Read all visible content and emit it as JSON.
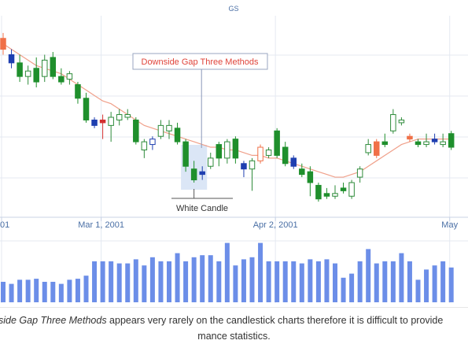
{
  "colors": {
    "bull": "#2e8b3a",
    "bear_green": "#1b8b2b",
    "hollow_green": "#2e8b3a",
    "blue": "#1f3fb0",
    "orange": "#f07048",
    "red_candle": "#d33030",
    "ma_line": "#f0a08a",
    "volume": "#6c8ee8",
    "grid": "#e4e9f2",
    "annotation_red": "#e0443a",
    "annotation_dark": "#333333",
    "highlight": "#dbe6f6"
  },
  "chart_data": {
    "type": "candlestick",
    "title": "GS",
    "x_ticks": [
      {
        "label": "01",
        "index": 0
      },
      {
        "label": "Mar 1, 2001",
        "index": 12
      },
      {
        "label": "Apr 2, 2001",
        "index": 33
      },
      {
        "label": "May",
        "index": 54
      }
    ],
    "price_axis_hidden": true,
    "grid": true,
    "candles": [
      {
        "o": 110,
        "h": 112,
        "l": 104,
        "c": 106,
        "color": "orange"
      },
      {
        "o": 104,
        "h": 106,
        "l": 99,
        "c": 101,
        "color": "blue"
      },
      {
        "o": 101,
        "h": 104,
        "l": 94,
        "c": 96,
        "color": "green"
      },
      {
        "o": 96,
        "h": 100,
        "l": 93,
        "c": 98,
        "color": "green_hollow"
      },
      {
        "o": 99,
        "h": 103,
        "l": 92,
        "c": 94,
        "color": "green"
      },
      {
        "o": 96,
        "h": 104,
        "l": 94,
        "c": 102,
        "color": "green_hollow"
      },
      {
        "o": 103,
        "h": 105,
        "l": 95,
        "c": 96,
        "color": "green"
      },
      {
        "o": 96,
        "h": 99,
        "l": 93,
        "c": 94,
        "color": "green"
      },
      {
        "o": 95,
        "h": 98,
        "l": 93,
        "c": 97,
        "color": "green_hollow"
      },
      {
        "o": 93,
        "h": 94,
        "l": 86,
        "c": 88,
        "color": "green"
      },
      {
        "o": 88,
        "h": 90,
        "l": 79,
        "c": 80,
        "color": "green"
      },
      {
        "o": 80,
        "h": 81,
        "l": 77,
        "c": 78,
        "color": "blue"
      },
      {
        "o": 79,
        "h": 82,
        "l": 73,
        "c": 80,
        "color": "red"
      },
      {
        "o": 78,
        "h": 83,
        "l": 72,
        "c": 81,
        "color": "green_hollow"
      },
      {
        "o": 80,
        "h": 84,
        "l": 78,
        "c": 82,
        "color": "green_hollow"
      },
      {
        "o": 81,
        "h": 84,
        "l": 80,
        "c": 82,
        "color": "green_hollow"
      },
      {
        "o": 80,
        "h": 81,
        "l": 71,
        "c": 72,
        "color": "green"
      },
      {
        "o": 69,
        "h": 73,
        "l": 66,
        "c": 72,
        "color": "green_hollow"
      },
      {
        "o": 71,
        "h": 74,
        "l": 69,
        "c": 73,
        "color": "blue_hollow"
      },
      {
        "o": 74,
        "h": 80,
        "l": 73,
        "c": 78,
        "color": "green_hollow"
      },
      {
        "o": 78,
        "h": 80,
        "l": 73,
        "c": 76,
        "color": "green_hollow"
      },
      {
        "o": 77,
        "h": 79,
        "l": 71,
        "c": 72,
        "color": "green"
      },
      {
        "o": 72,
        "h": 73,
        "l": 61,
        "c": 63,
        "color": "green"
      },
      {
        "o": 62,
        "h": 65,
        "l": 57,
        "c": 58,
        "color": "green"
      },
      {
        "o": 61,
        "h": 63,
        "l": 58,
        "c": 60,
        "color": "blue"
      },
      {
        "o": 63,
        "h": 68,
        "l": 62,
        "c": 66,
        "color": "green_hollow"
      },
      {
        "o": 71,
        "h": 72,
        "l": 63,
        "c": 66,
        "color": "green"
      },
      {
        "o": 66,
        "h": 73,
        "l": 64,
        "c": 72,
        "color": "green_hollow"
      },
      {
        "o": 73,
        "h": 74,
        "l": 64,
        "c": 66,
        "color": "green"
      },
      {
        "o": 64,
        "h": 65,
        "l": 59,
        "c": 62,
        "color": "blue"
      },
      {
        "o": 65,
        "h": 66,
        "l": 54,
        "c": 62,
        "color": "green_hollow"
      },
      {
        "o": 65,
        "h": 71,
        "l": 64,
        "c": 70,
        "color": "orange_hollow"
      },
      {
        "o": 69,
        "h": 70,
        "l": 66,
        "c": 67,
        "color": "green_hollow"
      },
      {
        "o": 76,
        "h": 77,
        "l": 66,
        "c": 67,
        "color": "green"
      },
      {
        "o": 70,
        "h": 72,
        "l": 63,
        "c": 64,
        "color": "green"
      },
      {
        "o": 66,
        "h": 67,
        "l": 62,
        "c": 63,
        "color": "blue"
      },
      {
        "o": 62,
        "h": 64,
        "l": 59,
        "c": 60,
        "color": "green"
      },
      {
        "o": 61,
        "h": 63,
        "l": 52,
        "c": 57,
        "color": "green"
      },
      {
        "o": 56,
        "h": 57,
        "l": 50,
        "c": 51,
        "color": "green"
      },
      {
        "o": 52,
        "h": 55,
        "l": 51,
        "c": 53,
        "color": "green"
      },
      {
        "o": 52,
        "h": 56,
        "l": 51,
        "c": 53,
        "color": "green_hollow"
      },
      {
        "o": 54,
        "h": 57,
        "l": 53,
        "c": 55,
        "color": "green"
      },
      {
        "o": 52,
        "h": 58,
        "l": 51,
        "c": 57,
        "color": "green_hollow"
      },
      {
        "o": 59,
        "h": 63,
        "l": 57,
        "c": 62,
        "color": "green_hollow"
      },
      {
        "o": 68,
        "h": 73,
        "l": 67,
        "c": 71,
        "color": "green_hollow"
      },
      {
        "o": 72,
        "h": 73,
        "l": 66,
        "c": 67,
        "color": "orange"
      },
      {
        "o": 72,
        "h": 75,
        "l": 70,
        "c": 71,
        "color": "green"
      },
      {
        "o": 76,
        "h": 84,
        "l": 75,
        "c": 82,
        "color": "green_hollow"
      },
      {
        "o": 80,
        "h": 81,
        "l": 78,
        "c": 79,
        "color": "green_hollow"
      },
      {
        "o": 74,
        "h": 75,
        "l": 72,
        "c": 73,
        "color": "orange"
      },
      {
        "o": 72,
        "h": 73,
        "l": 70,
        "c": 71,
        "color": "green"
      },
      {
        "o": 71,
        "h": 75,
        "l": 70,
        "c": 72,
        "color": "green_hollow"
      },
      {
        "o": 73,
        "h": 75,
        "l": 71,
        "c": 72,
        "color": "blue"
      },
      {
        "o": 71,
        "h": 75,
        "l": 70,
        "c": 72,
        "color": "green_hollow"
      },
      {
        "o": 75,
        "h": 76,
        "l": 69,
        "c": 70,
        "color": "green"
      }
    ],
    "moving_average": [
      108,
      106,
      104,
      102,
      100,
      99,
      98,
      97,
      95,
      93,
      91,
      89,
      87,
      86,
      84,
      82,
      80,
      78,
      77,
      76,
      75,
      74,
      73,
      72,
      71,
      70,
      70,
      69,
      69,
      68,
      67,
      67,
      66,
      66,
      65,
      64,
      63,
      62,
      61,
      60,
      59,
      59,
      60,
      61,
      63,
      65,
      67,
      69,
      71,
      72,
      73,
      73,
      73,
      73,
      73
    ],
    "volume": [
      20,
      18,
      22,
      22,
      23,
      20,
      20,
      18,
      22,
      23,
      26,
      40,
      40,
      40,
      38,
      38,
      42,
      36,
      44,
      40,
      40,
      48,
      40,
      44,
      46,
      46,
      40,
      58,
      36,
      42,
      44,
      58,
      40,
      40,
      40,
      40,
      38,
      42,
      40,
      42,
      38,
      24,
      28,
      40,
      52,
      38,
      40,
      40,
      48,
      40,
      22,
      32,
      36,
      40,
      34
    ],
    "annotations": [
      {
        "label": "Downside Gap Three Methods",
        "kind": "pattern",
        "candle_indices": [
          22,
          23,
          24
        ]
      },
      {
        "label": "White Candle",
        "kind": "candle",
        "candle_indices": [
          23
        ]
      }
    ]
  },
  "caption": {
    "line1_italic": "side Gap Three Methods",
    "line1_rest": " appears very rarely on the candlestick charts therefore it is difficult to provide",
    "line2": "mance statistics."
  }
}
